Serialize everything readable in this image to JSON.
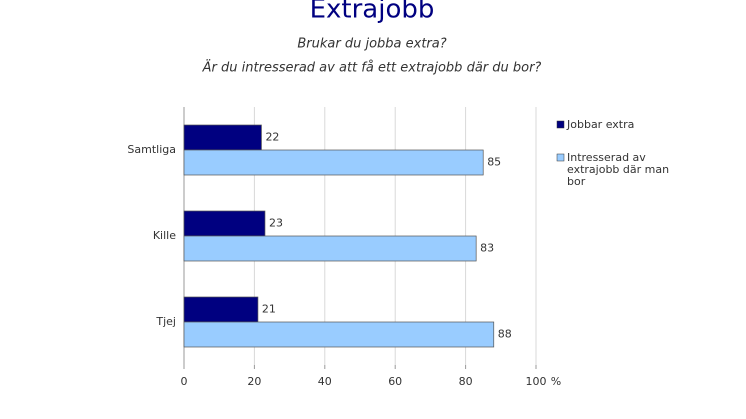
{
  "chart_data": {
    "type": "hbar",
    "title": "Extrajobb",
    "subtitle": [
      "Brukar du jobba extra?",
      "Är du intresserad av att få ett extrajobb där du bor?"
    ],
    "categories": [
      "Samtliga",
      "Kille",
      "Tjej"
    ],
    "series": [
      {
        "name": "Jobbar extra",
        "color": "#000080",
        "values": [
          22,
          23,
          21
        ]
      },
      {
        "name": "Intresserad av extrajobb där man bor",
        "color": "#99ccff",
        "values": [
          85,
          83,
          88
        ]
      }
    ],
    "xlabel": "%",
    "xlim": [
      0,
      100
    ],
    "xticks": [
      0,
      20,
      40,
      60,
      80,
      100
    ],
    "grid": true,
    "legend": "right"
  }
}
